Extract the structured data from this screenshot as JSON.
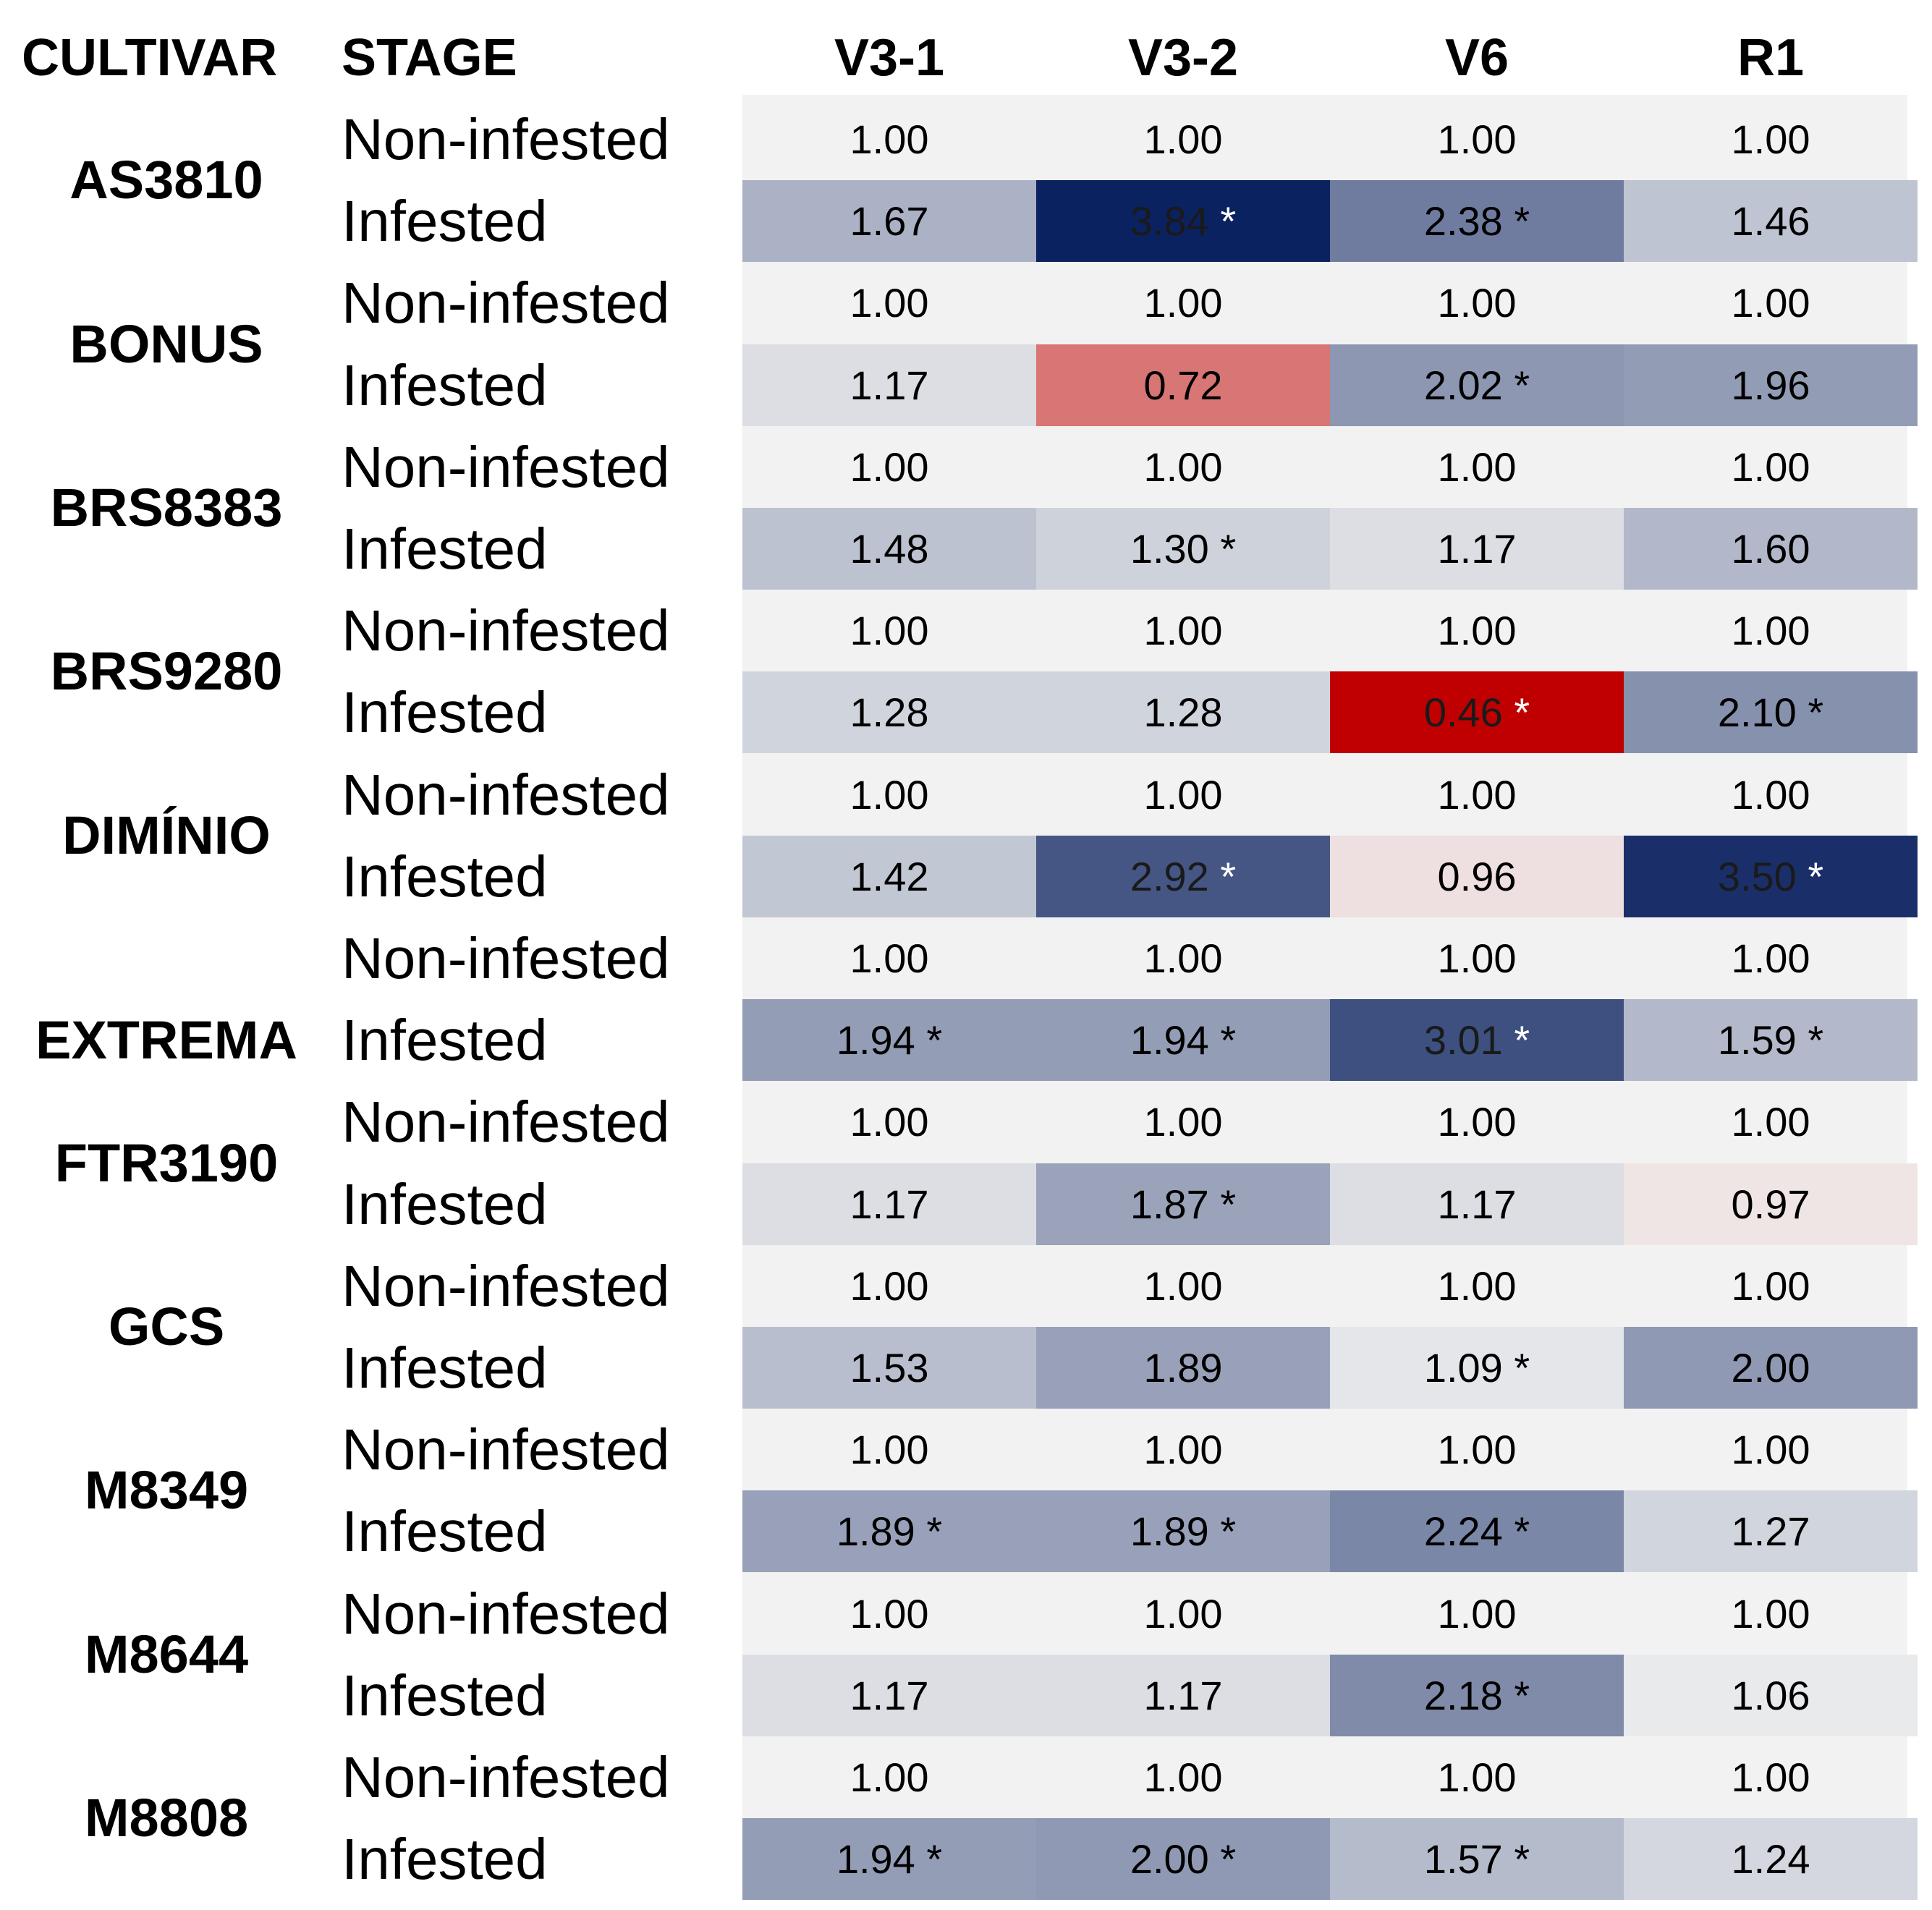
{
  "headers": {
    "cultivar": "CULTIVAR",
    "stage": "STAGE",
    "columns": [
      "V3-1",
      "V3-2",
      "V6",
      "R1"
    ]
  },
  "colors": {
    "neutral": "#f2f2f2",
    "increase_max": "#0b2260",
    "decrease_max": "#c00000"
  },
  "chart_data": {
    "type": "table",
    "title": "",
    "columns": [
      "V3-1",
      "V3-2",
      "V6",
      "R1"
    ],
    "stage_labels": {
      "control": "Non-infested",
      "treatment": "Infested"
    },
    "rows": [
      {
        "cultivar": "AS3810",
        "control": [
          1.0,
          1.0,
          1.0,
          1.0
        ],
        "infested": [
          1.67,
          3.84,
          2.38,
          1.46
        ],
        "infested_text": [
          "1.67",
          "3.84 *",
          "2.38 *",
          "1.46"
        ]
      },
      {
        "cultivar": "BONUS",
        "control": [
          1.0,
          1.0,
          1.0,
          1.0
        ],
        "infested": [
          1.17,
          0.72,
          2.02,
          1.96
        ],
        "infested_text": [
          "1.17",
          "0.72",
          "2.02 *",
          "1.96"
        ]
      },
      {
        "cultivar": "BRS8383",
        "control": [
          1.0,
          1.0,
          1.0,
          1.0
        ],
        "infested": [
          1.48,
          1.3,
          1.17,
          1.6
        ],
        "infested_text": [
          "1.48",
          "1.30 *",
          "1.17",
          "1.60"
        ]
      },
      {
        "cultivar": "BRS9280",
        "control": [
          1.0,
          1.0,
          1.0,
          1.0
        ],
        "infested": [
          1.28,
          1.28,
          0.46,
          2.1
        ],
        "infested_text": [
          "1.28",
          "1.28",
          "0.46 *",
          "2.10 *"
        ]
      },
      {
        "cultivar": "DIMÍNIO",
        "control": [
          1.0,
          1.0,
          1.0,
          1.0
        ],
        "infested": [
          1.42,
          2.92,
          0.96,
          3.5
        ],
        "infested_text": [
          "1.42",
          "2.92 *",
          "0.96",
          "3.50 *"
        ]
      },
      {
        "cultivar": "EXTREMA",
        "control": [
          1.0,
          1.0,
          1.0,
          1.0
        ],
        "infested": [
          1.94,
          1.94,
          3.01,
          1.59
        ],
        "infested_text": [
          "1.94 *",
          "1.94 *",
          "3.01 *",
          "1.59 *"
        ]
      },
      {
        "cultivar": "FTR3190",
        "control": [
          1.0,
          1.0,
          1.0,
          1.0
        ],
        "infested": [
          1.17,
          1.87,
          1.17,
          0.97
        ],
        "infested_text": [
          "1.17",
          "1.87 *",
          "1.17",
          "0.97"
        ]
      },
      {
        "cultivar": "GCS",
        "control": [
          1.0,
          1.0,
          1.0,
          1.0
        ],
        "infested": [
          1.53,
          1.89,
          1.09,
          2.0
        ],
        "infested_text": [
          "1.53",
          "1.89",
          "1.09 *",
          "2.00"
        ]
      },
      {
        "cultivar": "M8349",
        "control": [
          1.0,
          1.0,
          1.0,
          1.0
        ],
        "infested": [
          1.89,
          1.89,
          2.24,
          1.27
        ],
        "infested_text": [
          "1.89 *",
          "1.89 *",
          "2.24 *",
          "1.27"
        ]
      },
      {
        "cultivar": "M8644",
        "control": [
          1.0,
          1.0,
          1.0,
          1.0
        ],
        "infested": [
          1.17,
          1.17,
          2.18,
          1.06
        ],
        "infested_text": [
          "1.17",
          "1.17",
          "2.18 *",
          "1.06"
        ]
      },
      {
        "cultivar": "M8808",
        "control": [
          1.0,
          1.0,
          1.0,
          1.0
        ],
        "infested": [
          1.94,
          2.0,
          1.57,
          1.24
        ],
        "infested_text": [
          "1.94 *",
          "2.00 *",
          "1.57 *",
          "1.24"
        ]
      }
    ]
  }
}
